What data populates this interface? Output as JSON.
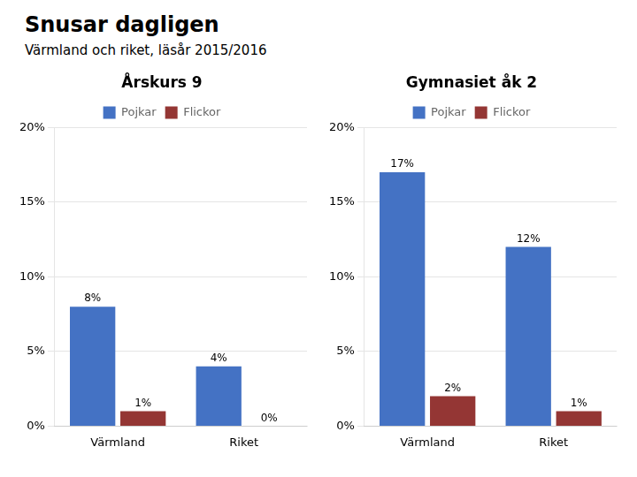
{
  "title": "Snusar dagligen",
  "subtitle": "Värmland och riket, läsår 2015/2016",
  "chart_data": [
    {
      "type": "bar",
      "title": "Årskurs 9",
      "categories": [
        "Värmland",
        "Riket"
      ],
      "series": [
        {
          "name": "Pojkar",
          "color": "#4472C4",
          "values": [
            8,
            4
          ],
          "value_labels": [
            "8%",
            "4%"
          ]
        },
        {
          "name": "Flickor",
          "color": "#943634",
          "values": [
            1,
            0
          ],
          "value_labels": [
            "1%",
            "0%"
          ]
        }
      ],
      "ylim": [
        0,
        20
      ],
      "yticks": [
        {
          "value": 0,
          "label": "0%"
        },
        {
          "value": 5,
          "label": "5%"
        },
        {
          "value": 10,
          "label": "10%"
        },
        {
          "value": 15,
          "label": "15%"
        },
        {
          "value": 20,
          "label": "20%"
        }
      ],
      "grid": true,
      "legend": "top",
      "data_labels": true
    },
    {
      "type": "bar",
      "title": "Gymnasiet åk 2",
      "categories": [
        "Värmland",
        "Riket"
      ],
      "series": [
        {
          "name": "Pojkar",
          "color": "#4472C4",
          "values": [
            17,
            12
          ],
          "value_labels": [
            "17%",
            "12%"
          ]
        },
        {
          "name": "Flickor",
          "color": "#943634",
          "values": [
            2,
            1
          ],
          "value_labels": [
            "2%",
            "1%"
          ]
        }
      ],
      "ylim": [
        0,
        20
      ],
      "yticks": [
        {
          "value": 0,
          "label": "0%"
        },
        {
          "value": 5,
          "label": "5%"
        },
        {
          "value": 10,
          "label": "10%"
        },
        {
          "value": 15,
          "label": "15%"
        },
        {
          "value": 20,
          "label": "20%"
        }
      ],
      "grid": true,
      "legend": "top",
      "data_labels": true
    }
  ]
}
